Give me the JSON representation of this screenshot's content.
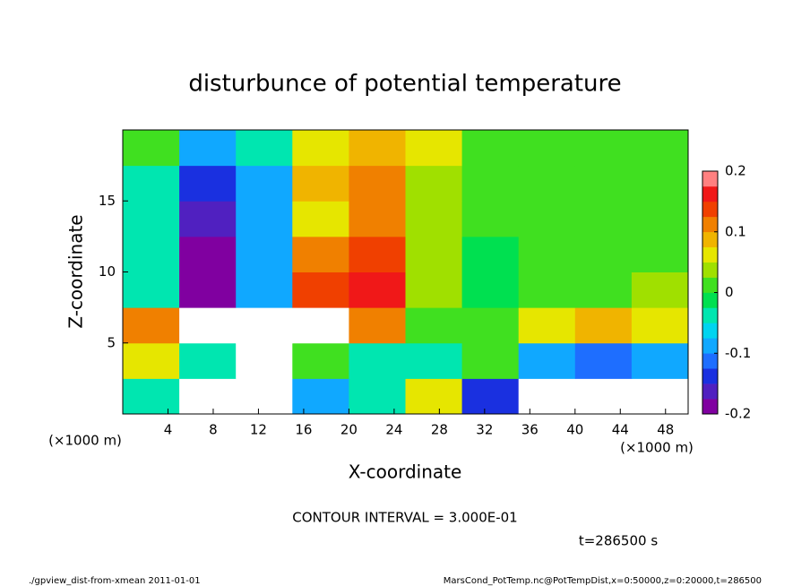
{
  "chart_data": {
    "type": "heatmap",
    "title": "disturbunce of potential temperature",
    "x_label": "X-coordinate",
    "y_label": "Z-coordinate",
    "x_unit": "(×1000 m)",
    "xbins": [
      0,
      5,
      10,
      15,
      20,
      25,
      30,
      35,
      40,
      45,
      50
    ],
    "ybins": [
      0,
      2.5,
      5,
      7.5,
      10,
      12.5,
      15,
      17.5,
      20
    ],
    "values": [
      [
        -0.05,
        0.3,
        0.3,
        -0.1,
        -0.05,
        0.05,
        -0.15,
        -0.3,
        -0.3,
        -0.3
      ],
      [
        0.05,
        -0.05,
        0.3,
        0.02,
        -0.05,
        -0.05,
        0,
        -0.1,
        -0.12,
        -0.1
      ],
      [
        0.12,
        0.3,
        0.3,
        0.3,
        0.1,
        0,
        0.02,
        0.05,
        0.08,
        0.05
      ],
      [
        -0.04,
        -0.2,
        -0.1,
        0.15,
        0.17,
        0.04,
        -0.02,
        0.01,
        0.02,
        0.03
      ],
      [
        -0.05,
        -0.18,
        -0.1,
        0.1,
        0.13,
        0.04,
        -0.01,
        0,
        0,
        0.02
      ],
      [
        -0.05,
        -0.17,
        -0.1,
        0.07,
        0.12,
        0.04,
        0,
        0.01,
        0,
        0.02
      ],
      [
        -0.03,
        -0.15,
        -0.08,
        0.08,
        0.1,
        0.04,
        0.01,
        0.01,
        0,
        0.02
      ],
      [
        0,
        -0.08,
        -0.03,
        0.06,
        0.08,
        0.05,
        0.02,
        0.02,
        0.02,
        0.02
      ]
    ],
    "xlim": [
      0,
      50
    ],
    "xticks": [
      4,
      8,
      12,
      16,
      20,
      24,
      28,
      32,
      36,
      40,
      44,
      48
    ],
    "ylim": [
      0,
      20
    ],
    "yticks": [
      5,
      10,
      15
    ],
    "zlim": [
      -0.2,
      0.2
    ],
    "zticks": [
      -0.2,
      -0.1,
      0,
      0.1,
      0.2
    ],
    "colors": [
      "#8000a0",
      "#5020c0",
      "#1a30e0",
      "#1e6eff",
      "#10a8ff",
      "#00d4f0",
      "#00e6b0",
      "#00e050",
      "#40e020",
      "#a0e000",
      "#e6e600",
      "#f0b400",
      "#f08000",
      "#f04000",
      "#f01818",
      "#ff8080"
    ],
    "out_of_range_color": "#ffffff",
    "annotation": "CONTOUR INTERVAL = 3.000E-01",
    "time_label": "t=286500 s",
    "footer_left": "./gpview_dist-from-xmean  2011-01-01",
    "footer_right": "MarsCond_PotTemp.nc@PotTempDist,x=0:50000,z=0:20000,t=286500"
  }
}
